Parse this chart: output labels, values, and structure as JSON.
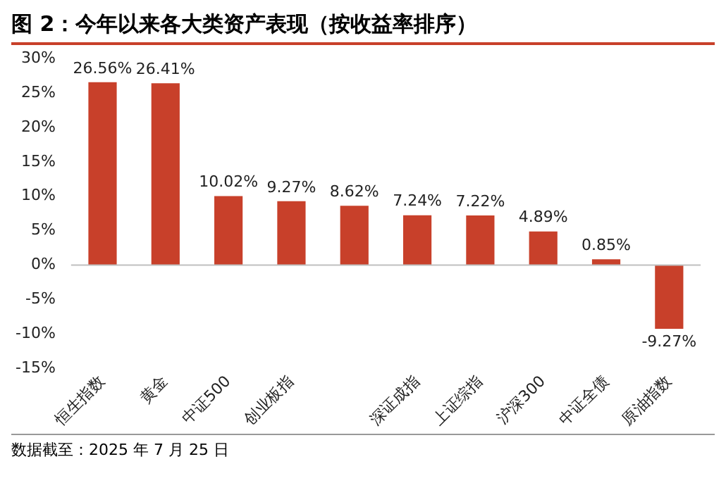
{
  "chart_data": {
    "type": "bar",
    "title": "图 2：今年以来各大类资产表现（按收益率排序）",
    "categories": [
      "恒生指数",
      "黄金",
      "中证500",
      "创业板指",
      null,
      "深证成指",
      "上证综指",
      "沪深300",
      "中证全债",
      "原油指数"
    ],
    "values": [
      26.56,
      26.41,
      10.02,
      9.27,
      8.62,
      7.24,
      7.22,
      4.89,
      0.85,
      -9.27
    ],
    "value_labels": [
      "26.56%",
      "26.41%",
      "10.02%",
      "9.27%",
      "8.62%",
      "7.24%",
      "7.22%",
      "4.89%",
      "0.85%",
      "-9.27%"
    ],
    "color": "#c8402a",
    "ylim": [
      -15,
      30
    ],
    "yticks": [
      {
        "value": -15,
        "label": "-15%"
      },
      {
        "value": -10,
        "label": "-10%"
      },
      {
        "value": -5,
        "label": "-5%"
      },
      {
        "value": 0,
        "label": "0%"
      },
      {
        "value": 5,
        "label": "5%"
      },
      {
        "value": 10,
        "label": "10%"
      },
      {
        "value": 15,
        "label": "15%"
      },
      {
        "value": 20,
        "label": "20%"
      },
      {
        "value": 25,
        "label": "25%"
      },
      {
        "value": 30,
        "label": "30%"
      }
    ],
    "grid": false,
    "legend": false,
    "ref_lines": [
      {
        "axis": "y",
        "value": 0,
        "color": "#bfbfbf"
      }
    ],
    "annotations": [
      "数据截至：2025 年 7 月 25 日"
    ]
  }
}
